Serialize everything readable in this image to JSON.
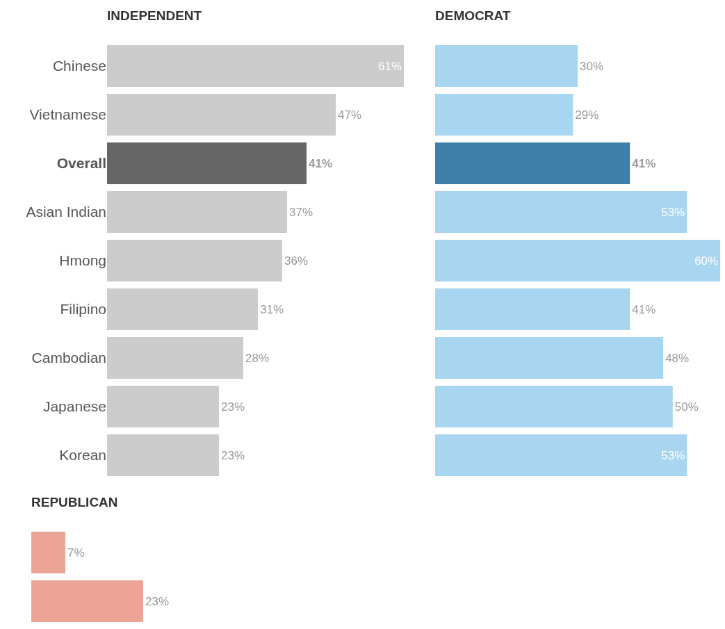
{
  "chart_data": [
    {
      "type": "bar",
      "orientation": "horizontal",
      "title": "INDEPENDENT",
      "categories": [
        "Chinese",
        "Vietnamese",
        "Overall",
        "Asian Indian",
        "Hmong",
        "Filipino",
        "Cambodian",
        "Japanese",
        "Korean"
      ],
      "values": [
        61,
        47,
        41,
        37,
        36,
        31,
        28,
        23,
        23
      ],
      "colors": [
        "#cccccc",
        "#cccccc",
        "#666666",
        "#cccccc",
        "#cccccc",
        "#cccccc",
        "#cccccc",
        "#cccccc",
        "#cccccc"
      ],
      "value_labels": [
        "61%",
        "47%",
        "41%",
        "37%",
        "36%",
        "31%",
        "28%",
        "23%",
        "23%"
      ],
      "grid": false,
      "legend": false
    },
    {
      "type": "bar",
      "orientation": "horizontal",
      "title": "DEMOCRAT",
      "categories": [
        null,
        null,
        null,
        null,
        null,
        null,
        null,
        null,
        null
      ],
      "values": [
        30,
        29,
        41,
        53,
        60,
        41,
        48,
        50,
        53
      ],
      "colors": [
        "#a8d5ef",
        "#a8d5ef",
        "#3d7fa8",
        "#a8d5ef",
        "#a8d5ef",
        "#a8d5ef",
        "#a8d5ef",
        "#a8d5ef",
        "#a8d5ef"
      ],
      "value_labels": [
        "30%",
        "29%",
        "41%",
        "53%",
        "60%",
        "41%",
        "48%",
        "50%",
        "53%"
      ],
      "grid": false,
      "legend": false
    },
    {
      "type": "bar",
      "orientation": "horizontal",
      "title": "REPUBLICAN",
      "categories": [
        null,
        null
      ],
      "values": [
        7,
        23
      ],
      "colors": [
        "#eca497",
        "#eca497"
      ],
      "value_labels": [
        "7%",
        "23%"
      ],
      "grid": false,
      "legend": false
    }
  ]
}
